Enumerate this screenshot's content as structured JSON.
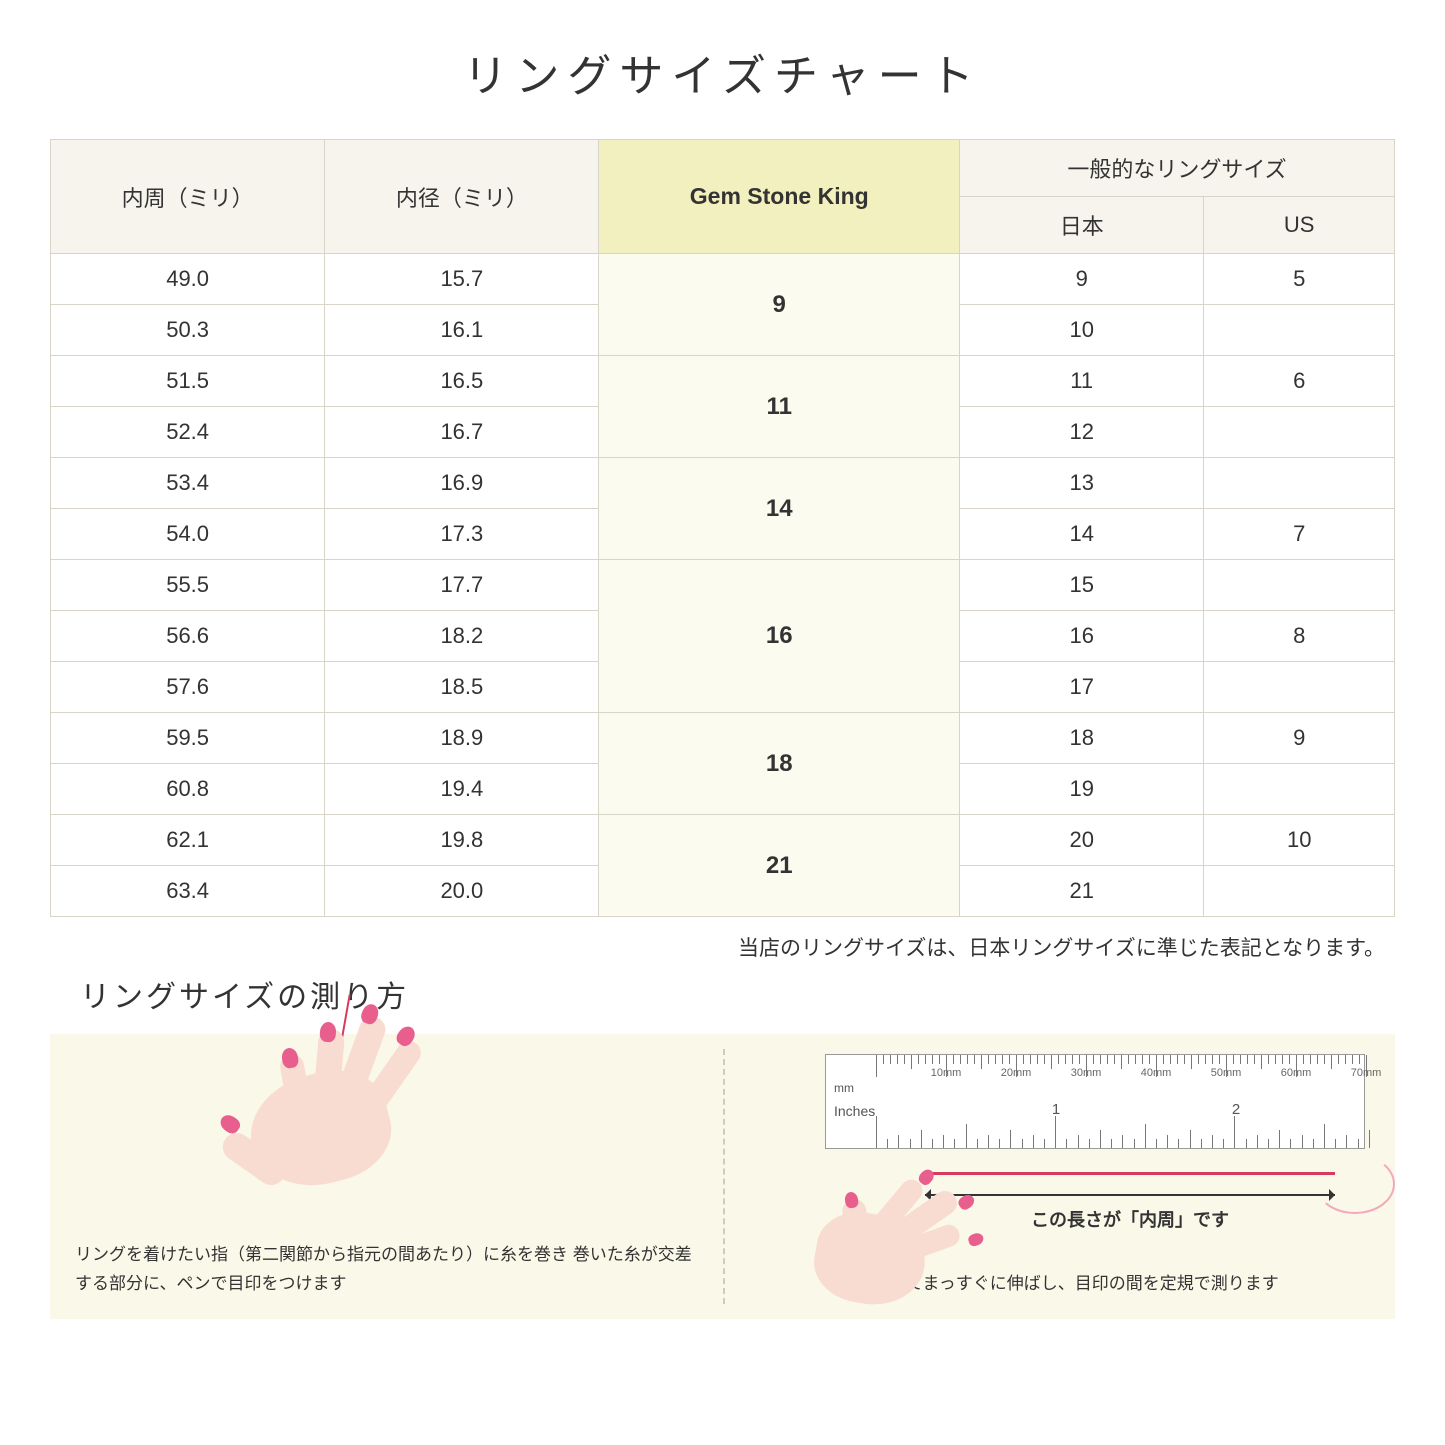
{
  "title": "リングサイズチャート",
  "table": {
    "headers": {
      "circumference": "内周（ミリ）",
      "diameter": "内径（ミリ）",
      "gsk": "Gem Stone King",
      "general_group": "一般的なリングサイズ",
      "japan": "日本",
      "us": "US"
    },
    "groups": [
      {
        "gsk": "9",
        "rows": [
          {
            "c": "49.0",
            "d": "15.7",
            "jp": "9",
            "us": "5"
          },
          {
            "c": "50.3",
            "d": "16.1",
            "jp": "10",
            "us": ""
          }
        ]
      },
      {
        "gsk": "11",
        "rows": [
          {
            "c": "51.5",
            "d": "16.5",
            "jp": "11",
            "us": "6"
          },
          {
            "c": "52.4",
            "d": "16.7",
            "jp": "12",
            "us": ""
          }
        ]
      },
      {
        "gsk": "14",
        "rows": [
          {
            "c": "53.4",
            "d": "16.9",
            "jp": "13",
            "us": ""
          },
          {
            "c": "54.0",
            "d": "17.3",
            "jp": "14",
            "us": "7"
          }
        ]
      },
      {
        "gsk": "16",
        "rows": [
          {
            "c": "55.5",
            "d": "17.7",
            "jp": "15",
            "us": ""
          },
          {
            "c": "56.6",
            "d": "18.2",
            "jp": "16",
            "us": "8"
          },
          {
            "c": "57.6",
            "d": "18.5",
            "jp": "17",
            "us": ""
          }
        ]
      },
      {
        "gsk": "18",
        "rows": [
          {
            "c": "59.5",
            "d": "18.9",
            "jp": "18",
            "us": "9"
          },
          {
            "c": "60.8",
            "d": "19.4",
            "jp": "19",
            "us": ""
          }
        ]
      },
      {
        "gsk": "21",
        "rows": [
          {
            "c": "62.1",
            "d": "19.8",
            "jp": "20",
            "us": "10"
          },
          {
            "c": "63.4",
            "d": "20.0",
            "jp": "21",
            "us": ""
          }
        ]
      }
    ],
    "header_bg": "#f6f4ec",
    "gsk_header_bg": "#f3f0bf",
    "gsk_cell_bg": "#fcfbef",
    "border_color": "#d8d4c8"
  },
  "note": "当店のリングサイズは、日本リングサイズに準じた表記となります。",
  "measure": {
    "title": "リングサイズの測り方",
    "panel_bg": "#faf8e8",
    "skin_color": "#f8dcd2",
    "nail_color": "#e85f8e",
    "thread_color": "#d63b5f",
    "left_caption": "リングを着けたい指（第二関節から指元の間あたり）に糸を巻き\n巻いた糸が交差する部分に、ペンで目印をつけます",
    "right_caption": "糸を外してまっすぐに伸ばし、目印の間を定規で測ります",
    "arrow_label": "この長さが「内周」です",
    "ruler": {
      "mm_label": "mm",
      "inches_label": "Inches",
      "mm_marks": [
        "10mm",
        "20mm",
        "30mm",
        "40mm",
        "50mm",
        "60mm",
        "70mm"
      ],
      "inch_marks": [
        "1",
        "2"
      ]
    }
  }
}
